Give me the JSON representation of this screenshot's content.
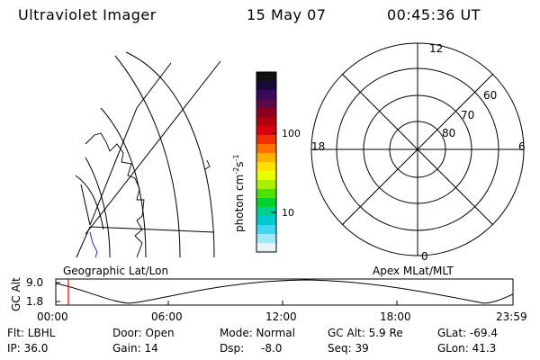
{
  "header": {
    "instrument": "Ultraviolet Imager",
    "date": "15 May 07",
    "time": "00:45:36 UT"
  },
  "colorbar": {
    "title": "photon cm",
    "title_exp": "-2",
    "title_unit": "s",
    "title_exp2": "-1",
    "ticks": [
      "100",
      "10"
    ],
    "colors": [
      "#101010",
      "#1a0a3a",
      "#3a0a5a",
      "#5a0a4a",
      "#8a0020",
      "#b00010",
      "#d80010",
      "#f03000",
      "#ff7000",
      "#ffb000",
      "#ffe000",
      "#e8ff00",
      "#a8f000",
      "#50e000",
      "#00d030",
      "#00d090",
      "#00c8d0",
      "#40d8f0",
      "#a0e8f8",
      "#e8f4f8"
    ]
  },
  "geo_panel": {
    "label": "Geographic Lat/Lon"
  },
  "polar_panel": {
    "label": "Apex MLat/MLT",
    "mlt_labels": [
      "12",
      "18",
      "6",
      "0"
    ],
    "lat_labels": [
      "60",
      "70",
      "80"
    ]
  },
  "timeline": {
    "ylabel": "GC Alt",
    "y_ticks": [
      "9.0",
      "1.8"
    ],
    "x_ticks": [
      "00:00",
      "06:00",
      "12:00",
      "18:00",
      "23:59"
    ],
    "marker_color": "#d00000"
  },
  "status": {
    "flt": "Flt: LBHL",
    "door": "Door: Open",
    "mode": "Mode: Normal",
    "gcalt": "GC Alt: 5.9 Re",
    "glat": "GLat: -69.4",
    "ip": "IP: 36.0",
    "gain": "Gain: 14",
    "dsp_label": "Dsp:",
    "dsp_value": "-8.0",
    "seq": "Seq: 39",
    "glon": "GLon:  41.3"
  }
}
